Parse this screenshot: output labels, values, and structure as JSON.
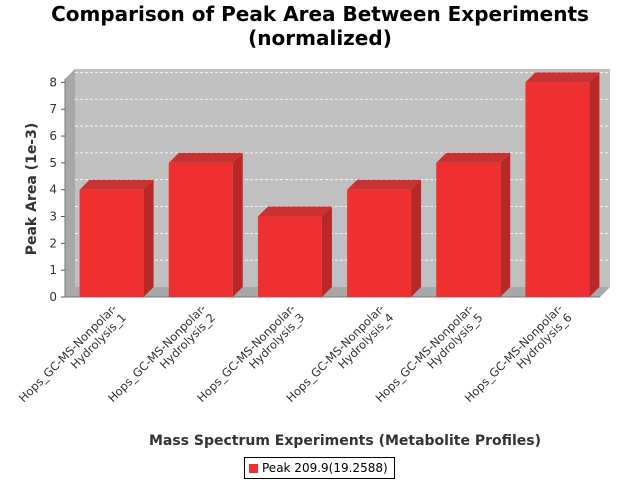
{
  "chart_data": {
    "type": "bar",
    "title_line1": "Comparison of Peak Area Between Experiments",
    "title_line2": "(normalized)",
    "xlabel": "Mass Spectrum Experiments (Metabolite Profiles)",
    "ylabel": "Peak Area (1e-3)",
    "ylim": [
      0,
      8.5
    ],
    "yticks": [
      0,
      1,
      2,
      3,
      4,
      5,
      6,
      7,
      8
    ],
    "grid": true,
    "legend_position": "bottom",
    "categories": [
      [
        "Hops_GC-MS-Nonpolar-",
        "Hydrolysis_1"
      ],
      [
        "Hops_GC-MS-Nonpolar-",
        "Hydrolysis_2"
      ],
      [
        "Hops_GC-MS-Nonpolar-",
        "Hydrolysis_3"
      ],
      [
        "Hops_GC-MS-Nonpolar-",
        "Hydrolysis_4"
      ],
      [
        "Hops_GC-MS-Nonpolar-",
        "Hydrolysis_5"
      ],
      [
        "Hops_GC-MS-Nonpolar-",
        "Hydrolysis_6"
      ]
    ],
    "series": [
      {
        "name": "Peak 209.9(19.2588)",
        "values": [
          4,
          5,
          3,
          4,
          5,
          8
        ],
        "color": "#f03030"
      }
    ],
    "colors": {
      "plot_back": "#c0c0c0",
      "plot_side": "#a8a8a8",
      "bar_side": "#b82828",
      "bar_top": "#c83232"
    }
  }
}
